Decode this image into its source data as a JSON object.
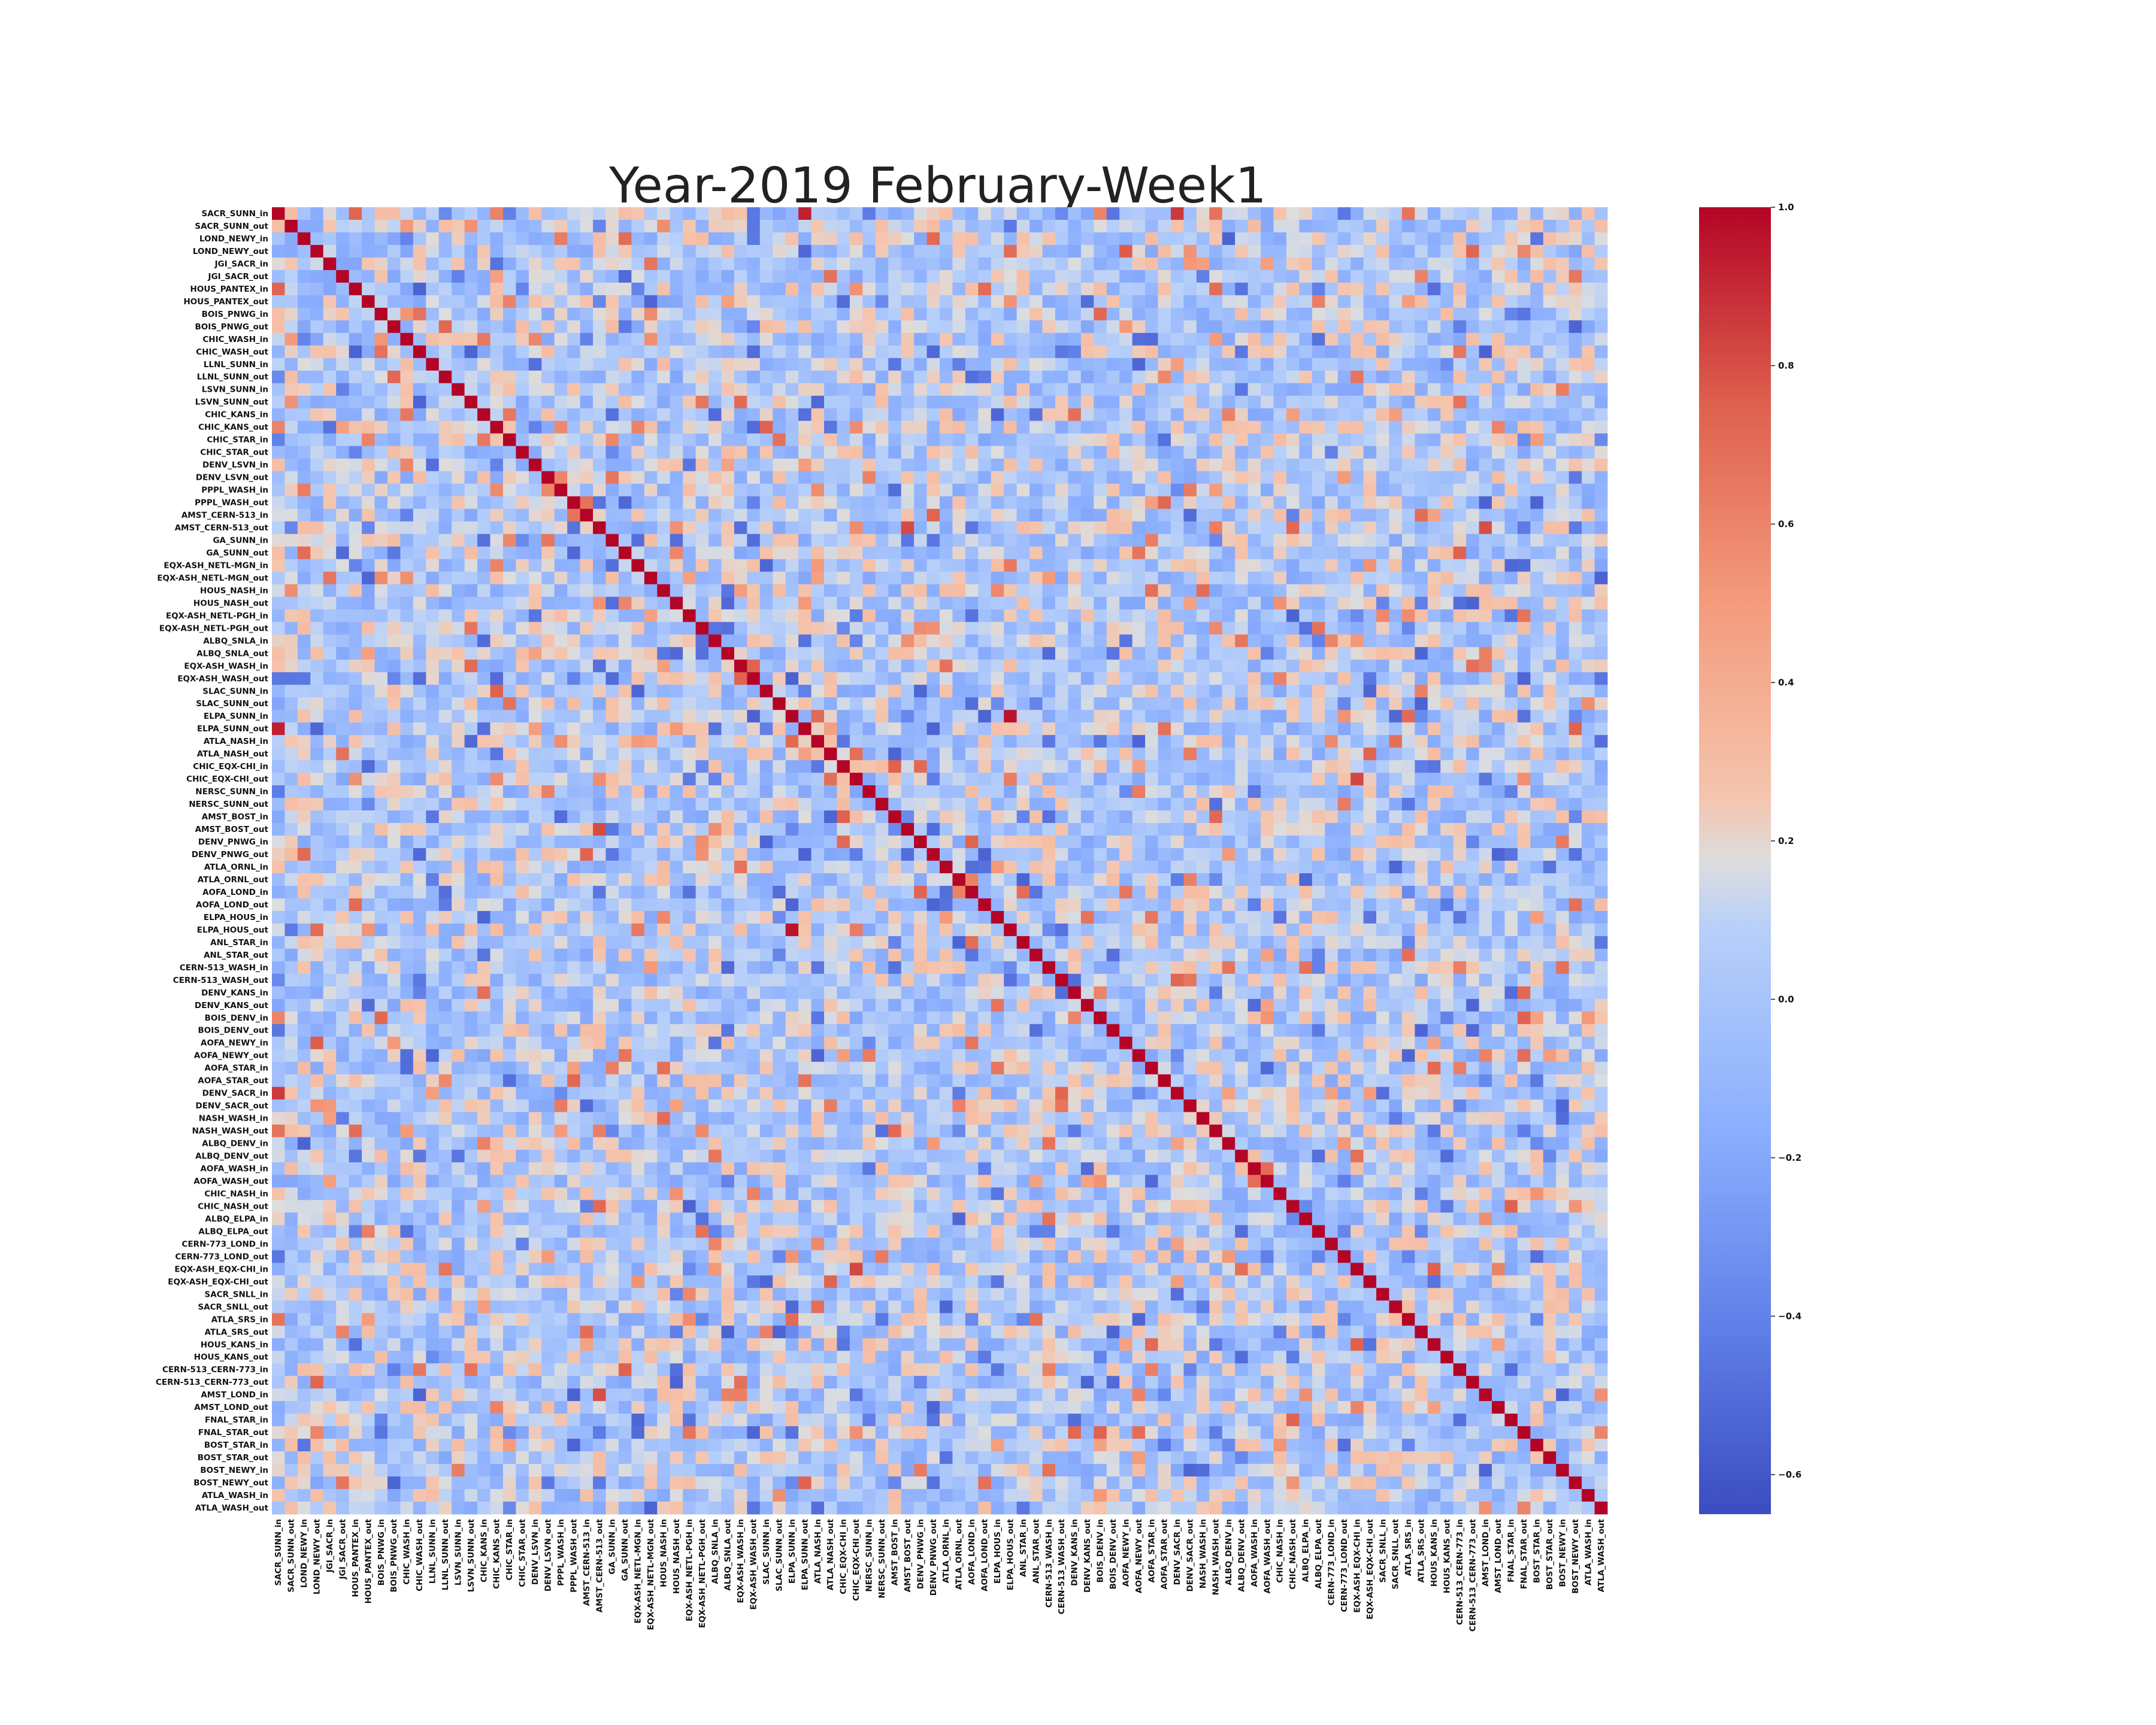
{
  "chart_data": {
    "type": "heatmap",
    "title": "Year-2019 February-Week1",
    "xlabel": "",
    "ylabel": "",
    "labels": [
      "SACR_SUNN_in",
      "SACR_SUNN_out",
      "LOND_NEWY_in",
      "LOND_NEWY_out",
      "JGI_SACR_in",
      "JGI_SACR_out",
      "HOUS_PANTEX_in",
      "HOUS_PANTEX_out",
      "BOIS_PNWG_in",
      "BOIS_PNWG_out",
      "CHIC_WASH_in",
      "CHIC_WASH_out",
      "LLNL_SUNN_in",
      "LLNL_SUNN_out",
      "LSVN_SUNN_in",
      "LSVN_SUNN_out",
      "CHIC_KANS_in",
      "CHIC_KANS_out",
      "CHIC_STAR_in",
      "CHIC_STAR_out",
      "DENV_LSVN_in",
      "DENV_LSVN_out",
      "PPPL_WASH_in",
      "PPPL_WASH_out",
      "AMST_CERN-513_in",
      "AMST_CERN-513_out",
      "GA_SUNN_in",
      "GA_SUNN_out",
      "EQX-ASH_NETL-MGN_in",
      "EQX-ASH_NETL-MGN_out",
      "HOUS_NASH_in",
      "HOUS_NASH_out",
      "EQX-ASH_NETL-PGH_in",
      "EQX-ASH_NETL-PGH_out",
      "ALBQ_SNLA_in",
      "ALBQ_SNLA_out",
      "EQX-ASH_WASH_in",
      "EQX-ASH_WASH_out",
      "SLAC_SUNN_in",
      "SLAC_SUNN_out",
      "ELPA_SUNN_in",
      "ELPA_SUNN_out",
      "ATLA_NASH_in",
      "ATLA_NASH_out",
      "CHIC_EQX-CHI_in",
      "CHIC_EQX-CHI_out",
      "NERSC_SUNN_in",
      "NERSC_SUNN_out",
      "AMST_BOST_in",
      "AMST_BOST_out",
      "DENV_PNWG_in",
      "DENV_PNWG_out",
      "ATLA_ORNL_in",
      "ATLA_ORNL_out",
      "AOFA_LOND_in",
      "AOFA_LOND_out",
      "ELPA_HOUS_in",
      "ELPA_HOUS_out",
      "ANL_STAR_in",
      "ANL_STAR_out",
      "CERN-513_WASH_in",
      "CERN-513_WASH_out",
      "DENV_KANS_in",
      "DENV_KANS_out",
      "BOIS_DENV_in",
      "BOIS_DENV_out",
      "AOFA_NEWY_in",
      "AOFA_NEWY_out",
      "AOFA_STAR_in",
      "AOFA_STAR_out",
      "DENV_SACR_in",
      "DENV_SACR_out",
      "NASH_WASH_in",
      "NASH_WASH_out",
      "ALBQ_DENV_in",
      "ALBQ_DENV_out",
      "AOFA_WASH_in",
      "AOFA_WASH_out",
      "CHIC_NASH_in",
      "CHIC_NASH_out",
      "ALBQ_ELPA_in",
      "ALBQ_ELPA_out",
      "CERN-773_LOND_in",
      "CERN-773_LOND_out",
      "EQX-ASH_EQX-CHI_in",
      "EQX-ASH_EQX-CHI_out",
      "SACR_SNLL_in",
      "SACR_SNLL_out",
      "ATLA_SRS_in",
      "ATLA_SRS_out",
      "HOUS_KANS_in",
      "HOUS_KANS_out",
      "CERN-513_CERN-773_in",
      "CERN-513_CERN-773_out",
      "AMST_LOND_in",
      "AMST_LOND_out",
      "FNAL_STAR_in",
      "FNAL_STAR_out",
      "BOST_STAR_in",
      "BOST_STAR_out",
      "BOST_NEWY_in",
      "BOST_NEWY_out",
      "ATLA_WASH_in",
      "ATLA_WASH_out"
    ],
    "diagonal_value": 1,
    "vmin": -0.65,
    "vmax": 1.0,
    "colormap": "coolwarm",
    "colorbar_ticks": [
      1.0,
      0.8,
      0.6,
      0.4,
      0.2,
      0.0,
      -0.2,
      -0.4,
      -0.6
    ],
    "colorbar_tick_labels": [
      "1.0",
      "0.8",
      "0.6",
      "0.4",
      "0.2",
      "0.0",
      "−0.2",
      "−0.4",
      "−0.6"
    ],
    "strong_pairs": [
      [
        "SACR_SUNN_in",
        "SACR_SUNN_out",
        0.29
      ],
      [
        "SACR_SUNN_in",
        "DENV_SACR_in",
        0.86
      ],
      [
        "SACR_SUNN_in",
        "ELPA_SUNN_out",
        0.93
      ],
      [
        "AMST_CERN-513_out",
        "AMST_LOND_in",
        0.8
      ],
      [
        "AMST_CERN-513_out",
        "AMST_BOST_out",
        0.81
      ],
      [
        "CHIC_KANS_in",
        "DENV_KANS_in",
        0.69
      ],
      [
        "BOIS_PNWG_in",
        "BOIS_DENV_in",
        0.72
      ],
      [
        "ELPA_SUNN_in",
        "ELPA_HOUS_out",
        0.96
      ],
      [
        "ELPA_SUNN_in",
        "ATLA_NASH_in",
        0.71
      ],
      [
        "ELPA_SUNN_in",
        "EQX-ASH_WASH_out",
        -0.55
      ],
      [
        "CHIC_EQX-CHI_out",
        "EQX-ASH_EQX-CHI_in",
        0.82
      ],
      [
        "HOUS_NASH_in",
        "ELPA_HOUS_in",
        0.58
      ],
      [
        "AOFA_NEWY_in",
        "LOND_NEWY_out",
        0.76
      ],
      [
        "ALBQ_SNLA_in",
        "ALBQ_DENV_out",
        0.66
      ],
      [
        "CERN-513_WASH_in",
        "CERN-513_CERN-773_in",
        0.62
      ]
    ],
    "grid": false,
    "legend": "colorbar-right"
  }
}
